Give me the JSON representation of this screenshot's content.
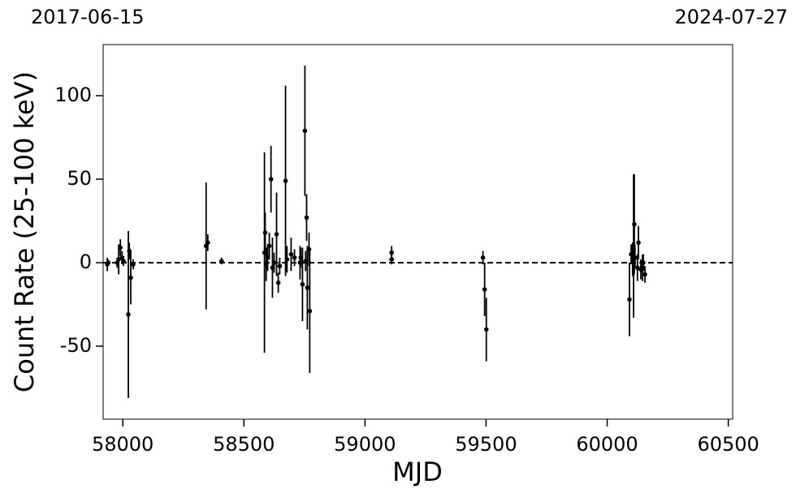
{
  "chart_data": {
    "type": "errorbar",
    "top_axis_labels": [
      "2017-06-15",
      "2024-07-27"
    ],
    "x_label": "MJD",
    "y_label": "Count Rate (25-100 keV)",
    "xlim": [
      57919,
      60518
    ],
    "ylim": [
      -93.7,
      130.6
    ],
    "xticks": [
      58000,
      58500,
      59000,
      59500,
      60000,
      60500
    ],
    "yticks": [
      -50,
      0,
      50,
      100
    ],
    "hline": 0,
    "color": "#000000",
    "x": [
      57936,
      57940,
      57977,
      57983,
      57990,
      57997,
      58003,
      58023,
      58027,
      58033,
      58043,
      58344,
      58351,
      58408,
      58585,
      58588,
      58592,
      58598,
      58605,
      58612,
      58618,
      58625,
      58635,
      58642,
      58648,
      58672,
      58678,
      58695,
      58709,
      58732,
      58735,
      58742,
      58752,
      58755,
      58759,
      58762,
      58769,
      58772,
      59110,
      59110,
      59487,
      59494,
      59501,
      60092,
      60099,
      60105,
      60109,
      60112,
      60115,
      60125,
      60129,
      60139,
      60146,
      60149,
      60156
    ],
    "values": [
      -1,
      0,
      0,
      2,
      9,
      3,
      1,
      -31,
      7,
      -9,
      -1,
      10,
      12,
      1,
      6,
      18,
      -1,
      3,
      10,
      50,
      -3,
      0,
      17,
      -12,
      -2,
      49,
      2,
      5,
      3,
      0,
      3,
      -13,
      79,
      1,
      27,
      -15,
      8,
      -29,
      6,
      2,
      3,
      -16,
      -40,
      -22,
      5,
      2,
      10,
      23,
      3,
      -3,
      12,
      -4,
      -3,
      0,
      -7
    ],
    "errors": [
      4,
      2,
      3,
      9,
      5,
      4,
      3,
      50,
      5,
      16,
      3,
      38,
      5,
      2,
      60,
      12,
      10,
      8,
      8,
      20,
      18,
      6,
      25,
      6,
      5,
      57,
      8,
      10,
      5,
      10,
      6,
      22,
      39,
      6,
      14,
      25,
      10,
      37,
      4,
      3,
      4,
      16,
      19,
      22,
      6,
      10,
      43,
      30,
      6,
      8,
      10,
      6,
      8,
      5,
      5
    ]
  }
}
